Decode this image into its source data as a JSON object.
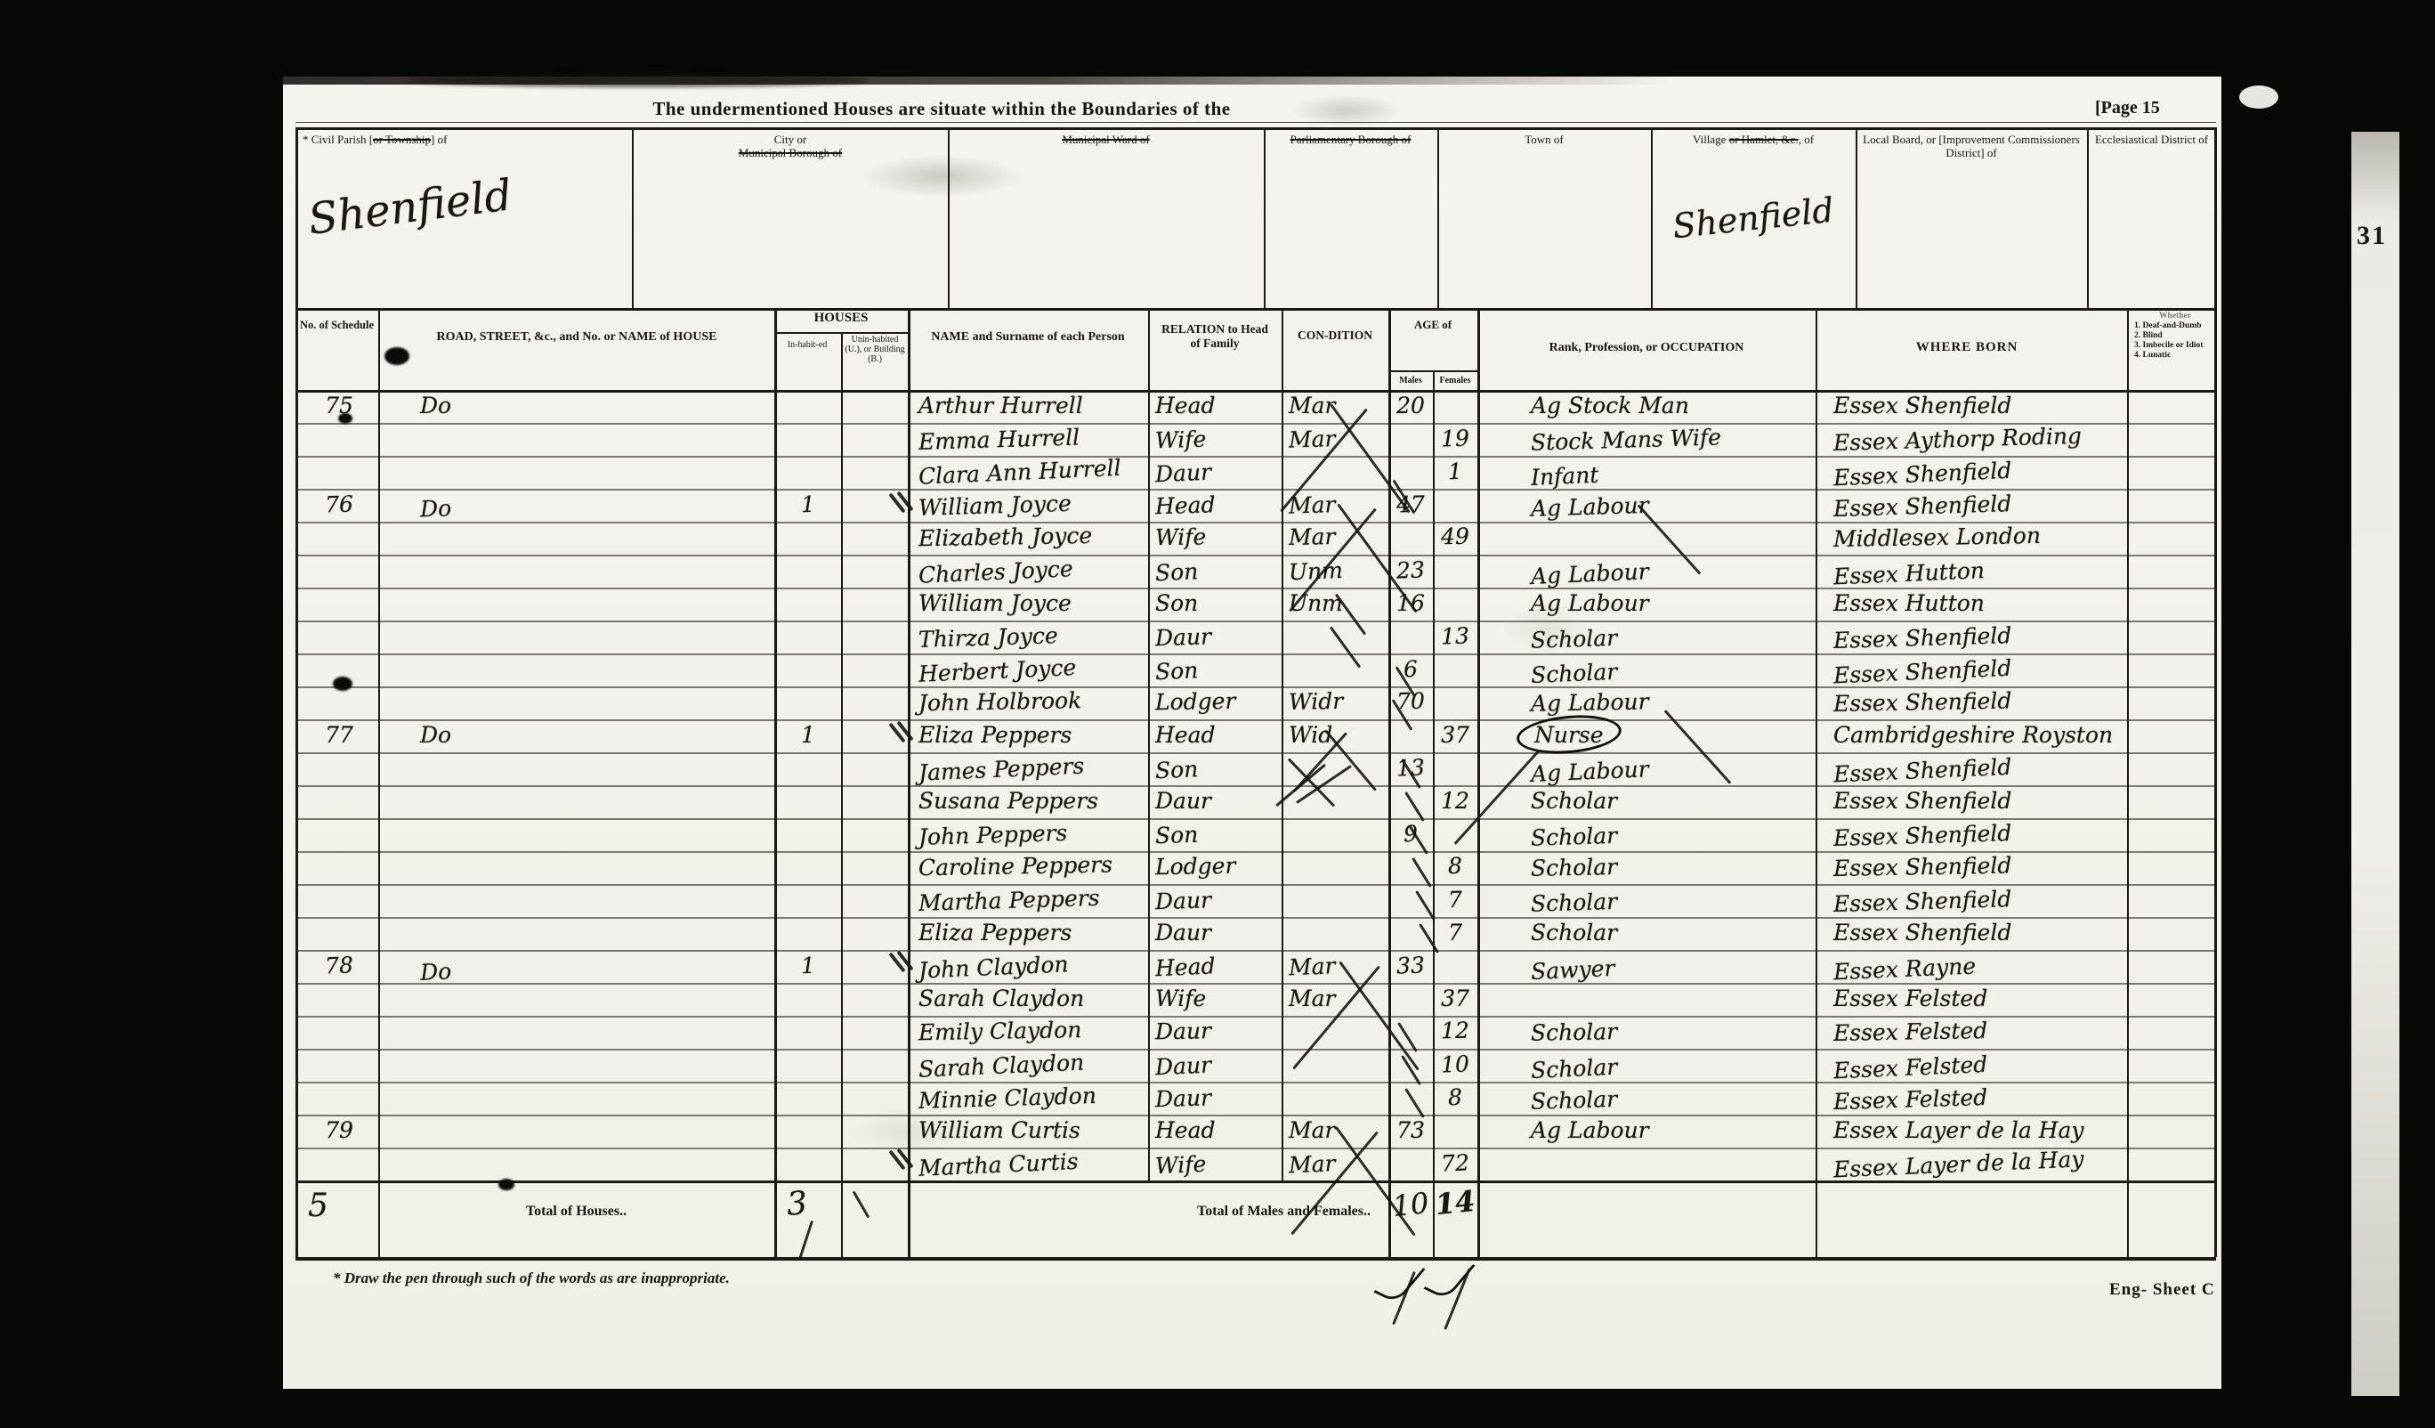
{
  "doc": {
    "page_label": "[Page 15",
    "title": "The undermentioned Houses are situate within the Boundaries of the",
    "footnote": "* Draw the pen through such of the words as are inappropriate.",
    "sheet_label": "Eng-  Sheet C",
    "side_digits": "31",
    "ink_color": "#17130d",
    "paper_color": "#f4f2ec"
  },
  "boundary": {
    "cells": [
      {
        "pre": "* Civil Parish [",
        "struck": "or Township",
        "post": "] of",
        "value": "Shenfield"
      },
      {
        "pre": "City or ",
        "struck": "Municipal Borough of",
        "post": "",
        "value": ""
      },
      {
        "pre": "",
        "struck": "Municipal Ward of",
        "post": "",
        "value": ""
      },
      {
        "pre": "",
        "struck": "Parliamentary Borough of",
        "post": "",
        "value": ""
      },
      {
        "pre": "Town of",
        "struck": "",
        "post": "",
        "value": ""
      },
      {
        "pre": "Village ",
        "struck": "or Hamlet, &c.",
        "post": ", of",
        "value": "Shenfield"
      },
      {
        "pre": "Local Board, or [Improvement Commissioners District] of",
        "struck": "",
        "post": "",
        "value": ""
      },
      {
        "pre": "Ecclesiastical District of",
        "struck": "",
        "post": "",
        "value": ""
      }
    ]
  },
  "table": {
    "headers": {
      "schedule": "No. of Schedule",
      "road": "ROAD, STREET, &c., and No. or NAME of HOUSE",
      "houses": "HOUSES",
      "inhabited": "In-habit-ed",
      "uninhabited": "Unin-habited (U.), or Building (B.)",
      "name": "NAME and Surname of each Person",
      "relation": "RELATION to Head of Family",
      "condition": "CON-DITION",
      "age": "AGE of",
      "males": "Males",
      "females": "Females",
      "occupation": "Rank, Profession, or OCCUPATION",
      "born": "WHERE BORN",
      "disability": [
        "Whether",
        "1. Deaf-and-Dumb",
        "2. Blind",
        "3. Imbecile or Idiot",
        "4. Lunatic"
      ]
    },
    "rows": [
      {
        "schedule": "75",
        "road": "Do",
        "inhabited": "",
        "name": "Arthur Hurrell",
        "relation": "Head",
        "condition": "Mar",
        "age_m": "20",
        "age_f": "",
        "occupation": "Ag Stock Man",
        "born": "Essex Shenfield"
      },
      {
        "schedule": "",
        "road": "",
        "inhabited": "",
        "name": "Emma Hurrell",
        "relation": "Wife",
        "condition": "Mar",
        "age_m": "",
        "age_f": "19",
        "occupation": "Stock Mans Wife",
        "born": "Essex Aythorp Roding"
      },
      {
        "schedule": "",
        "road": "",
        "inhabited": "",
        "name": "Clara Ann Hurrell",
        "relation": "Daur",
        "condition": "",
        "age_m": "",
        "age_f": "1",
        "occupation": "Infant",
        "born": "Essex Shenfield"
      },
      {
        "schedule": "76",
        "road": "Do",
        "inhabited": "1",
        "name": "William Joyce",
        "relation": "Head",
        "condition": "Mar",
        "age_m": "47",
        "age_f": "",
        "occupation": "Ag Labour",
        "born": "Essex Shenfield"
      },
      {
        "schedule": "",
        "road": "",
        "inhabited": "",
        "name": "Elizabeth Joyce",
        "relation": "Wife",
        "condition": "Mar",
        "age_m": "",
        "age_f": "49",
        "occupation": "",
        "born": "Middlesex London"
      },
      {
        "schedule": "",
        "road": "",
        "inhabited": "",
        "name": "Charles Joyce",
        "relation": "Son",
        "condition": "Unm",
        "age_m": "23",
        "age_f": "",
        "occupation": "Ag Labour",
        "born": "Essex Hutton"
      },
      {
        "schedule": "",
        "road": "",
        "inhabited": "",
        "name": "William Joyce",
        "relation": "Son",
        "condition": "Unm",
        "age_m": "16",
        "age_f": "",
        "occupation": "Ag Labour",
        "born": "Essex Hutton"
      },
      {
        "schedule": "",
        "road": "",
        "inhabited": "",
        "name": "Thirza Joyce",
        "relation": "Daur",
        "condition": "",
        "age_m": "",
        "age_f": "13",
        "occupation": "Scholar",
        "born": "Essex Shenfield"
      },
      {
        "schedule": "",
        "road": "",
        "inhabited": "",
        "name": "Herbert Joyce",
        "relation": "Son",
        "condition": "",
        "age_m": "6",
        "age_f": "",
        "occupation": "Scholar",
        "born": "Essex Shenfield"
      },
      {
        "schedule": "",
        "road": "",
        "inhabited": "",
        "name": "John Holbrook",
        "relation": "Lodger",
        "condition": "Widr",
        "age_m": "70",
        "age_f": "",
        "occupation": "Ag Labour",
        "born": "Essex Shenfield"
      },
      {
        "schedule": "77",
        "road": "Do",
        "inhabited": "1",
        "name": "Eliza Peppers",
        "relation": "Head",
        "condition": "Wid",
        "age_m": "",
        "age_f": "37",
        "occupation": "Nurse",
        "occ_circled": true,
        "born": "Cambridgeshire Royston"
      },
      {
        "schedule": "",
        "road": "",
        "inhabited": "",
        "name": "James Peppers",
        "relation": "Son",
        "condition": "",
        "age_m": "13",
        "age_f": "",
        "occupation": "Ag Labour",
        "born": "Essex Shenfield"
      },
      {
        "schedule": "",
        "road": "",
        "inhabited": "",
        "name": "Susana Peppers",
        "relation": "Daur",
        "condition": "",
        "age_m": "",
        "age_f": "12",
        "occupation": "Scholar",
        "born": "Essex Shenfield"
      },
      {
        "schedule": "",
        "road": "",
        "inhabited": "",
        "name": "John Peppers",
        "relation": "Son",
        "condition": "",
        "age_m": "9",
        "age_f": "",
        "occupation": "Scholar",
        "born": "Essex Shenfield"
      },
      {
        "schedule": "",
        "road": "",
        "inhabited": "",
        "name": "Caroline Peppers",
        "relation": "Lodger",
        "condition": "",
        "age_m": "",
        "age_f": "8",
        "occupation": "Scholar",
        "born": "Essex Shenfield"
      },
      {
        "schedule": "",
        "road": "",
        "inhabited": "",
        "name": "Martha Peppers",
        "relation": "Daur",
        "condition": "",
        "age_m": "",
        "age_f": "7",
        "occupation": "Scholar",
        "born": "Essex Shenfield"
      },
      {
        "schedule": "",
        "road": "",
        "inhabited": "",
        "name": "Eliza Peppers",
        "relation": "Daur",
        "condition": "",
        "age_m": "",
        "age_f": "7",
        "occupation": "Scholar",
        "born": "Essex Shenfield"
      },
      {
        "schedule": "78",
        "road": "Do",
        "inhabited": "1",
        "name": "John Claydon",
        "relation": "Head",
        "condition": "Mar",
        "age_m": "33",
        "age_f": "",
        "occupation": "Sawyer",
        "born": "Essex Rayne"
      },
      {
        "schedule": "",
        "road": "",
        "inhabited": "",
        "name": "Sarah Claydon",
        "relation": "Wife",
        "condition": "Mar",
        "age_m": "",
        "age_f": "37",
        "occupation": "",
        "born": "Essex Felsted"
      },
      {
        "schedule": "",
        "road": "",
        "inhabited": "",
        "name": "Emily Claydon",
        "relation": "Daur",
        "condition": "",
        "age_m": "",
        "age_f": "12",
        "occupation": "Scholar",
        "born": "Essex Felsted"
      },
      {
        "schedule": "",
        "road": "",
        "inhabited": "",
        "name": "Sarah Claydon",
        "relation": "Daur",
        "condition": "",
        "age_m": "",
        "age_f": "10",
        "occupation": "Scholar",
        "born": "Essex Felsted"
      },
      {
        "schedule": "",
        "road": "",
        "inhabited": "",
        "name": "Minnie Claydon",
        "relation": "Daur",
        "condition": "",
        "age_m": "",
        "age_f": "8",
        "occupation": "Scholar",
        "born": "Essex Felsted"
      },
      {
        "schedule": "79",
        "road": "",
        "inhabited": "",
        "name": "William Curtis",
        "relation": "Head",
        "condition": "Mar",
        "age_m": "73",
        "age_f": "",
        "occupation": "Ag Labour",
        "born": "Essex Layer de la Hay"
      },
      {
        "schedule": "",
        "road": "",
        "inhabited": "",
        "name": "Martha Curtis",
        "relation": "Wife",
        "condition": "Mar",
        "age_m": "",
        "age_f": "72",
        "occupation": "",
        "born": "Essex Layer de la Hay"
      }
    ],
    "totals": {
      "schedule_total": "5",
      "houses_label": "Total of Houses..",
      "houses_value": "3",
      "males_females_label": "Total of Males and Females..",
      "males": "10",
      "females": "14"
    }
  }
}
